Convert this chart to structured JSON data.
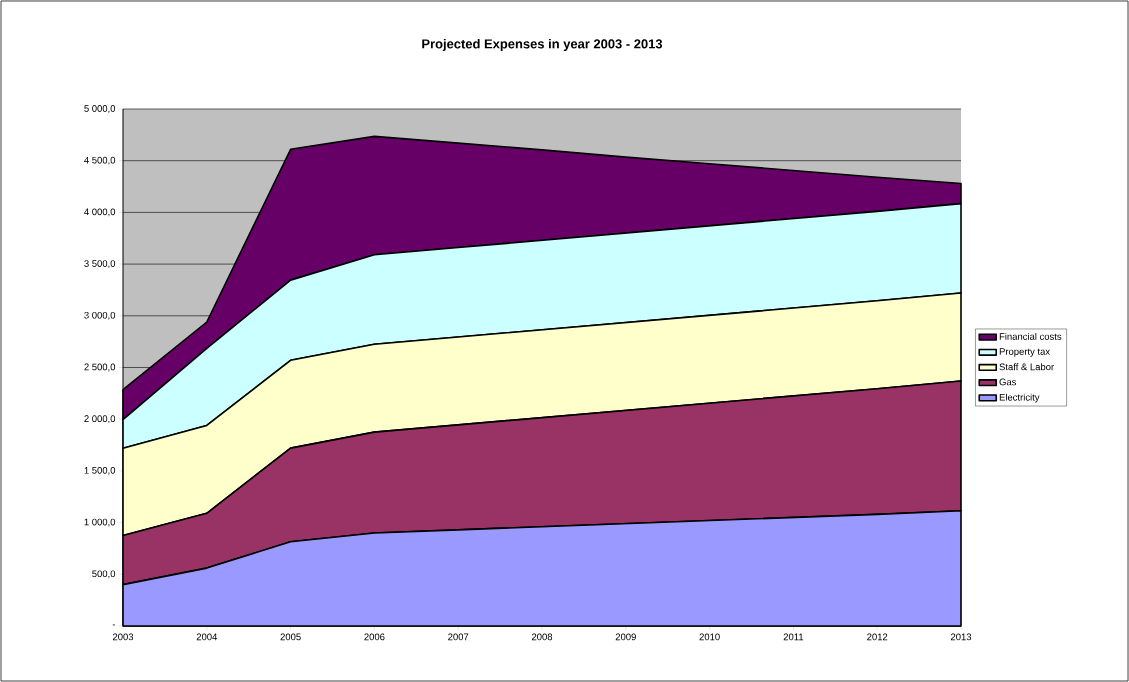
{
  "chart_data": {
    "type": "area",
    "title": "Projected Expenses in year 2003 - 2013",
    "stacked": true,
    "grid": "y",
    "legend": "right",
    "categories": [
      "2003",
      "2004",
      "2005",
      "2006",
      "2007",
      "2008",
      "2009",
      "2010",
      "2011",
      "2012",
      "2013"
    ],
    "ylim": [
      0,
      5000
    ],
    "yticks": [
      {
        "value": 0,
        "label": "-"
      },
      {
        "value": 500,
        "label": "500,0"
      },
      {
        "value": 1000,
        "label": "1 000,0"
      },
      {
        "value": 1500,
        "label": "1 500,0"
      },
      {
        "value": 2000,
        "label": "2 000,0"
      },
      {
        "value": 2500,
        "label": "2 500,0"
      },
      {
        "value": 3000,
        "label": "3 000,0"
      },
      {
        "value": 3500,
        "label": "3 500,0"
      },
      {
        "value": 4000,
        "label": "4 000,0"
      },
      {
        "value": 4500,
        "label": "4 500,0"
      },
      {
        "value": 5000,
        "label": "5 000,0"
      }
    ],
    "series": [
      {
        "name": "Electricity",
        "color": "#9999ff",
        "values": [
          400,
          560,
          815,
          900,
          930,
          960,
          990,
          1020,
          1050,
          1080,
          1115
        ]
      },
      {
        "name": "Gas",
        "color": "#993366",
        "values": [
          475,
          530,
          905,
          975,
          1015,
          1055,
          1095,
          1135,
          1175,
          1215,
          1255
        ]
      },
      {
        "name": "Staff & Labor",
        "color": "#ffffcc",
        "values": [
          845,
          850,
          850,
          850,
          850,
          850,
          850,
          850,
          850,
          850,
          850
        ]
      },
      {
        "name": "Property tax",
        "color": "#ccffff",
        "values": [
          275,
          745,
          775,
          865,
          865,
          865,
          865,
          865,
          865,
          865,
          865
        ]
      },
      {
        "name": "Financial costs",
        "color": "#660066",
        "values": [
          290,
          255,
          1265,
          1145,
          1010,
          875,
          735,
          600,
          465,
          330,
          195
        ]
      }
    ]
  }
}
